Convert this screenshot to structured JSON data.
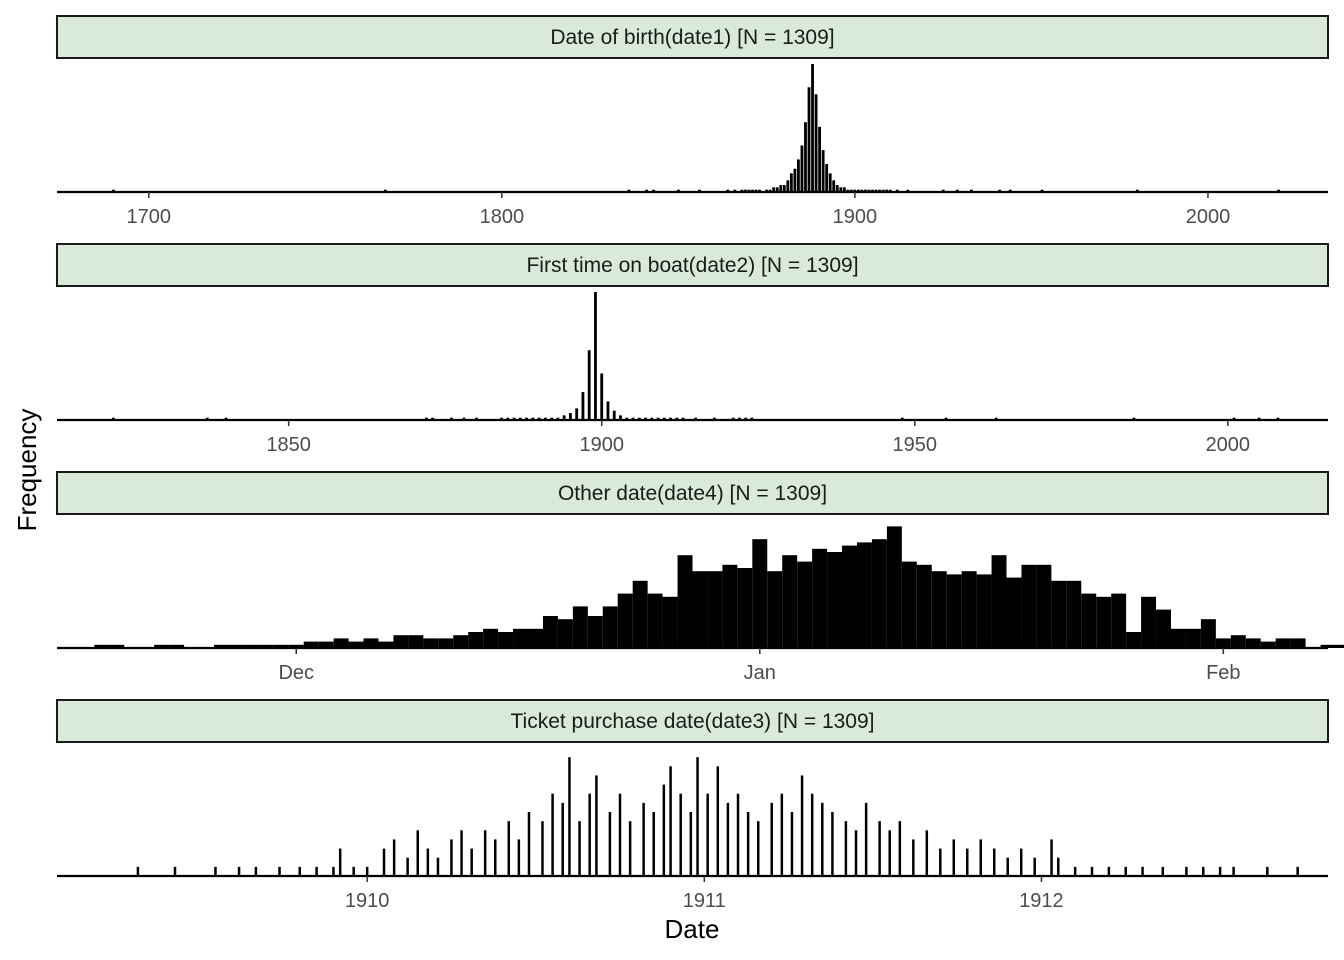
{
  "chart_data": {
    "type": "bar",
    "xlabel": "Date",
    "ylabel": "Frequency",
    "strip_fill": "#d9ead9",
    "bar_color": "#000000",
    "facets": [
      {
        "title": "Date of birth(date1) [N = 1309]",
        "x_unit": "year",
        "xlim": [
          1674,
          2034
        ],
        "ticks": [
          1700,
          1800,
          1900,
          2000
        ],
        "tick_labels": [
          "1700",
          "1800",
          "1900",
          "2000"
        ],
        "bin_width": 0.8,
        "ymax": 55,
        "bins": [
          [
            1690,
            1
          ],
          [
            1767,
            1
          ],
          [
            1836,
            1
          ],
          [
            1841,
            1
          ],
          [
            1843,
            1
          ],
          [
            1850,
            1
          ],
          [
            1856,
            1
          ],
          [
            1864,
            1
          ],
          [
            1866,
            1
          ],
          [
            1868,
            1
          ],
          [
            1869,
            1
          ],
          [
            1870,
            1
          ],
          [
            1871,
            1
          ],
          [
            1872,
            1
          ],
          [
            1873,
            1
          ],
          [
            1875,
            1
          ],
          [
            1876,
            1
          ],
          [
            1877,
            2
          ],
          [
            1878,
            2
          ],
          [
            1879,
            3
          ],
          [
            1880,
            3
          ],
          [
            1881,
            5
          ],
          [
            1882,
            8
          ],
          [
            1883,
            10
          ],
          [
            1884,
            14
          ],
          [
            1885,
            20
          ],
          [
            1886,
            30
          ],
          [
            1887,
            45
          ],
          [
            1888,
            55
          ],
          [
            1889,
            42
          ],
          [
            1890,
            28
          ],
          [
            1891,
            18
          ],
          [
            1892,
            12
          ],
          [
            1893,
            8
          ],
          [
            1894,
            5
          ],
          [
            1895,
            3
          ],
          [
            1896,
            2
          ],
          [
            1897,
            2
          ],
          [
            1898,
            1
          ],
          [
            1899,
            1
          ],
          [
            1900,
            1
          ],
          [
            1901,
            1
          ],
          [
            1902,
            1
          ],
          [
            1903,
            1
          ],
          [
            1904,
            1
          ],
          [
            1905,
            1
          ],
          [
            1906,
            1
          ],
          [
            1907,
            1
          ],
          [
            1908,
            1
          ],
          [
            1909,
            1
          ],
          [
            1910,
            1
          ],
          [
            1912,
            1
          ],
          [
            1915,
            1
          ],
          [
            1925,
            1
          ],
          [
            1929,
            1
          ],
          [
            1933,
            1
          ],
          [
            1941,
            1
          ],
          [
            1944,
            1
          ],
          [
            1953,
            1
          ],
          [
            1980,
            1
          ],
          [
            2020,
            1
          ]
        ]
      },
      {
        "title": "First time on boat(date2) [N = 1309]",
        "x_unit": "year",
        "xlim": [
          1813,
          2016
        ],
        "ticks": [
          1850,
          1900,
          1950,
          2000
        ],
        "tick_labels": [
          "1850",
          "1900",
          "1950",
          "2000"
        ],
        "bin_width": 0.45,
        "ymax": 55,
        "bins": [
          [
            1822,
            1
          ],
          [
            1837,
            1
          ],
          [
            1840,
            1
          ],
          [
            1872,
            1
          ],
          [
            1873,
            1
          ],
          [
            1876,
            1
          ],
          [
            1878,
            1
          ],
          [
            1880,
            1
          ],
          [
            1884,
            1
          ],
          [
            1885,
            1
          ],
          [
            1886,
            1
          ],
          [
            1887,
            1
          ],
          [
            1888,
            1
          ],
          [
            1889,
            1
          ],
          [
            1890,
            1
          ],
          [
            1891,
            1
          ],
          [
            1892,
            1
          ],
          [
            1893,
            1
          ],
          [
            1894,
            2
          ],
          [
            1895,
            3
          ],
          [
            1896,
            5
          ],
          [
            1897,
            12
          ],
          [
            1898,
            30
          ],
          [
            1899,
            55
          ],
          [
            1900,
            20
          ],
          [
            1901,
            8
          ],
          [
            1902,
            4
          ],
          [
            1903,
            2
          ],
          [
            1904,
            1
          ],
          [
            1905,
            1
          ],
          [
            1906,
            1
          ],
          [
            1907,
            1
          ],
          [
            1908,
            1
          ],
          [
            1909,
            1
          ],
          [
            1910,
            1
          ],
          [
            1911,
            1
          ],
          [
            1912,
            1
          ],
          [
            1913,
            1
          ],
          [
            1915,
            1
          ],
          [
            1918,
            1
          ],
          [
            1921,
            1
          ],
          [
            1922,
            1
          ],
          [
            1923,
            1
          ],
          [
            1924,
            1
          ],
          [
            1948,
            1
          ],
          [
            1955,
            1
          ],
          [
            1963,
            1
          ],
          [
            1985,
            1
          ],
          [
            2001,
            1
          ],
          [
            2005,
            1
          ],
          [
            2008,
            1
          ]
        ]
      },
      {
        "title": "Other date(date4) [N = 1309]",
        "x_unit": "date",
        "xlim": [
          "1911-11-15",
          "1912-02-08"
        ],
        "ticks": [
          "1911-12-01",
          "1912-01-01",
          "1912-02-01"
        ],
        "tick_labels": [
          "Dec",
          "Jan",
          "Feb"
        ],
        "bin_width": 1,
        "ymax": 40,
        "bins": [
          [
            "1911-11-18",
            1
          ],
          [
            "1911-11-19",
            1
          ],
          [
            "1911-11-22",
            1
          ],
          [
            "1911-11-23",
            1
          ],
          [
            "1911-11-26",
            1
          ],
          [
            "1911-11-27",
            1
          ],
          [
            "1911-11-28",
            1
          ],
          [
            "1911-11-29",
            1
          ],
          [
            "1911-11-30",
            1
          ],
          [
            "1911-12-01",
            1
          ],
          [
            "1911-12-02",
            2
          ],
          [
            "1911-12-03",
            2
          ],
          [
            "1911-12-04",
            3
          ],
          [
            "1911-12-05",
            2
          ],
          [
            "1911-12-06",
            3
          ],
          [
            "1911-12-07",
            2
          ],
          [
            "1911-12-08",
            4
          ],
          [
            "1911-12-09",
            4
          ],
          [
            "1911-12-10",
            3
          ],
          [
            "1911-12-11",
            3
          ],
          [
            "1911-12-12",
            4
          ],
          [
            "1911-12-13",
            5
          ],
          [
            "1911-12-14",
            6
          ],
          [
            "1911-12-15",
            5
          ],
          [
            "1911-12-16",
            6
          ],
          [
            "1911-12-17",
            6
          ],
          [
            "1911-12-18",
            10
          ],
          [
            "1911-12-19",
            9
          ],
          [
            "1911-12-20",
            13
          ],
          [
            "1911-12-21",
            10
          ],
          [
            "1911-12-22",
            13
          ],
          [
            "1911-12-23",
            17
          ],
          [
            "1911-12-24",
            21
          ],
          [
            "1911-12-25",
            17
          ],
          [
            "1911-12-26",
            16
          ],
          [
            "1911-12-27",
            29
          ],
          [
            "1911-12-28",
            24
          ],
          [
            "1911-12-29",
            24
          ],
          [
            "1911-12-30",
            26
          ],
          [
            "1911-12-31",
            25
          ],
          [
            "1912-01-01",
            34
          ],
          [
            "1912-01-02",
            24
          ],
          [
            "1912-01-03",
            29
          ],
          [
            "1912-01-04",
            27
          ],
          [
            "1912-01-05",
            31
          ],
          [
            "1912-01-06",
            30
          ],
          [
            "1912-01-07",
            32
          ],
          [
            "1912-01-08",
            33
          ],
          [
            "1912-01-09",
            34
          ],
          [
            "1912-01-10",
            38
          ],
          [
            "1912-01-11",
            27
          ],
          [
            "1912-01-12",
            26
          ],
          [
            "1912-01-13",
            24
          ],
          [
            "1912-01-14",
            23
          ],
          [
            "1912-01-15",
            24
          ],
          [
            "1912-01-16",
            23
          ],
          [
            "1912-01-17",
            29
          ],
          [
            "1912-01-18",
            22
          ],
          [
            "1912-01-19",
            26
          ],
          [
            "1912-01-20",
            26
          ],
          [
            "1912-01-21",
            21
          ],
          [
            "1912-01-22",
            21
          ],
          [
            "1912-01-23",
            17
          ],
          [
            "1912-01-24",
            16
          ],
          [
            "1912-01-25",
            17
          ],
          [
            "1912-01-26",
            5
          ],
          [
            "1912-01-27",
            16
          ],
          [
            "1912-01-28",
            12
          ],
          [
            "1912-01-29",
            6
          ],
          [
            "1912-01-30",
            6
          ],
          [
            "1912-01-31",
            9
          ],
          [
            "1912-02-01",
            3
          ],
          [
            "1912-02-02",
            4
          ],
          [
            "1912-02-03",
            3
          ],
          [
            "1912-02-04",
            2
          ],
          [
            "1912-02-05",
            3
          ],
          [
            "1912-02-06",
            3
          ],
          [
            "1912-02-08",
            1
          ],
          [
            "1912-02-09",
            1
          ],
          [
            "1912-02-11",
            1
          ]
        ]
      },
      {
        "title": "Ticket purchase date(date3) [N = 1309]",
        "x_unit": "year",
        "xlim": [
          1909.08,
          1912.85
        ],
        "ticks": [
          1910,
          1911,
          1912
        ],
        "tick_labels": [
          "1910",
          "1911",
          "1912"
        ],
        "bin_width": 0.006,
        "ymax": 14,
        "bins": [
          [
            1909.32,
            1
          ],
          [
            1909.43,
            1
          ],
          [
            1909.55,
            1
          ],
          [
            1909.62,
            1
          ],
          [
            1909.67,
            1
          ],
          [
            1909.74,
            1
          ],
          [
            1909.8,
            1
          ],
          [
            1909.85,
            1
          ],
          [
            1909.9,
            1
          ],
          [
            1909.92,
            3
          ],
          [
            1909.96,
            1
          ],
          [
            1910.0,
            1
          ],
          [
            1910.05,
            3
          ],
          [
            1910.08,
            4
          ],
          [
            1910.12,
            2
          ],
          [
            1910.15,
            5
          ],
          [
            1910.18,
            3
          ],
          [
            1910.21,
            2
          ],
          [
            1910.25,
            4
          ],
          [
            1910.28,
            5
          ],
          [
            1910.31,
            3
          ],
          [
            1910.35,
            5
          ],
          [
            1910.38,
            4
          ],
          [
            1910.42,
            6
          ],
          [
            1910.45,
            4
          ],
          [
            1910.48,
            7
          ],
          [
            1910.52,
            6
          ],
          [
            1910.55,
            9
          ],
          [
            1910.58,
            8
          ],
          [
            1910.6,
            13
          ],
          [
            1910.63,
            6
          ],
          [
            1910.66,
            9
          ],
          [
            1910.68,
            11
          ],
          [
            1910.72,
            7
          ],
          [
            1910.75,
            9
          ],
          [
            1910.78,
            6
          ],
          [
            1910.82,
            8
          ],
          [
            1910.85,
            7
          ],
          [
            1910.88,
            10
          ],
          [
            1910.9,
            12
          ],
          [
            1910.93,
            9
          ],
          [
            1910.96,
            7
          ],
          [
            1910.98,
            13
          ],
          [
            1911.01,
            9
          ],
          [
            1911.04,
            12
          ],
          [
            1911.07,
            8
          ],
          [
            1911.1,
            9
          ],
          [
            1911.13,
            7
          ],
          [
            1911.16,
            6
          ],
          [
            1911.2,
            8
          ],
          [
            1911.23,
            9
          ],
          [
            1911.26,
            7
          ],
          [
            1911.29,
            11
          ],
          [
            1911.32,
            9
          ],
          [
            1911.35,
            8
          ],
          [
            1911.38,
            7
          ],
          [
            1911.42,
            6
          ],
          [
            1911.45,
            5
          ],
          [
            1911.48,
            8
          ],
          [
            1911.52,
            6
          ],
          [
            1911.55,
            5
          ],
          [
            1911.58,
            6
          ],
          [
            1911.62,
            4
          ],
          [
            1911.66,
            5
          ],
          [
            1911.7,
            3
          ],
          [
            1911.74,
            4
          ],
          [
            1911.78,
            3
          ],
          [
            1911.82,
            4
          ],
          [
            1911.86,
            3
          ],
          [
            1911.9,
            2
          ],
          [
            1911.94,
            3
          ],
          [
            1911.98,
            2
          ],
          [
            1912.03,
            4
          ],
          [
            1912.05,
            2
          ],
          [
            1912.1,
            1
          ],
          [
            1912.15,
            1
          ],
          [
            1912.2,
            1
          ],
          [
            1912.25,
            1
          ],
          [
            1912.3,
            1
          ],
          [
            1912.36,
            1
          ],
          [
            1912.43,
            1
          ],
          [
            1912.48,
            1
          ],
          [
            1912.53,
            1
          ],
          [
            1912.57,
            1
          ],
          [
            1912.67,
            1
          ],
          [
            1912.76,
            1
          ]
        ]
      }
    ]
  }
}
